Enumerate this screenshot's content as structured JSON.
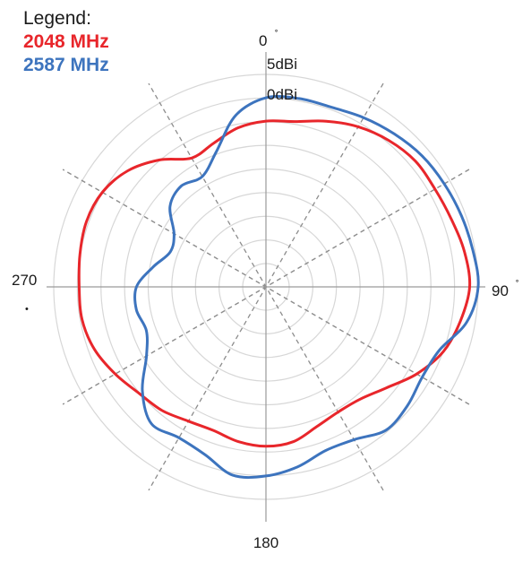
{
  "legend": {
    "title": "Legend:",
    "entries": [
      {
        "label": "2048 MHz",
        "color": "#e8262b"
      },
      {
        "label": "2587 MHz",
        "color": "#3d74be"
      }
    ]
  },
  "chart_data": {
    "type": "polar-line",
    "legend_title": "Legend:",
    "legend_position": "top-left",
    "angle_labels": {
      "0": "0",
      "90": "90",
      "180": "180",
      "270": "270"
    },
    "radial_labels": [
      "5dBi",
      "0dBi"
    ],
    "rings": 9,
    "spoke_step_deg": 30,
    "series": [
      {
        "name": "2048 MHz",
        "color": "#e8262b",
        "points": [
          [
            0,
            0.78
          ],
          [
            10,
            0.79
          ],
          [
            20,
            0.83
          ],
          [
            30,
            0.87
          ],
          [
            40,
            0.9
          ],
          [
            50,
            0.92
          ],
          [
            60,
            0.92
          ],
          [
            70,
            0.93
          ],
          [
            80,
            0.95
          ],
          [
            90,
            0.96
          ],
          [
            100,
            0.93
          ],
          [
            110,
            0.89
          ],
          [
            120,
            0.82
          ],
          [
            130,
            0.74
          ],
          [
            140,
            0.69
          ],
          [
            150,
            0.68
          ],
          [
            160,
            0.7
          ],
          [
            170,
            0.74
          ],
          [
            180,
            0.75
          ],
          [
            190,
            0.74
          ],
          [
            200,
            0.72
          ],
          [
            210,
            0.73
          ],
          [
            220,
            0.76
          ],
          [
            230,
            0.78
          ],
          [
            240,
            0.82
          ],
          [
            250,
            0.86
          ],
          [
            260,
            0.88
          ],
          [
            270,
            0.88
          ],
          [
            280,
            0.89
          ],
          [
            290,
            0.9
          ],
          [
            300,
            0.89
          ],
          [
            310,
            0.85
          ],
          [
            320,
            0.78
          ],
          [
            330,
            0.7
          ],
          [
            340,
            0.72
          ],
          [
            350,
            0.76
          ]
        ]
      },
      {
        "name": "2587 MHz",
        "color": "#3d74be",
        "points": [
          [
            0,
            0.89
          ],
          [
            10,
            0.9
          ],
          [
            20,
            0.9
          ],
          [
            30,
            0.92
          ],
          [
            40,
            0.94
          ],
          [
            50,
            0.96
          ],
          [
            60,
            0.97
          ],
          [
            70,
            0.98
          ],
          [
            80,
            0.99
          ],
          [
            90,
            1.0
          ],
          [
            100,
            0.96
          ],
          [
            110,
            0.87
          ],
          [
            120,
            0.85
          ],
          [
            130,
            0.87
          ],
          [
            140,
            0.88
          ],
          [
            150,
            0.83
          ],
          [
            160,
            0.82
          ],
          [
            170,
            0.86
          ],
          [
            180,
            0.89
          ],
          [
            190,
            0.9
          ],
          [
            200,
            0.84
          ],
          [
            210,
            0.82
          ],
          [
            220,
            0.84
          ],
          [
            230,
            0.76
          ],
          [
            240,
            0.65
          ],
          [
            250,
            0.6
          ],
          [
            260,
            0.62
          ],
          [
            270,
            0.61
          ],
          [
            280,
            0.54
          ],
          [
            290,
            0.48
          ],
          [
            300,
            0.5
          ],
          [
            310,
            0.59
          ],
          [
            320,
            0.62
          ],
          [
            330,
            0.6
          ],
          [
            340,
            0.68
          ],
          [
            350,
            0.82
          ]
        ]
      }
    ]
  }
}
